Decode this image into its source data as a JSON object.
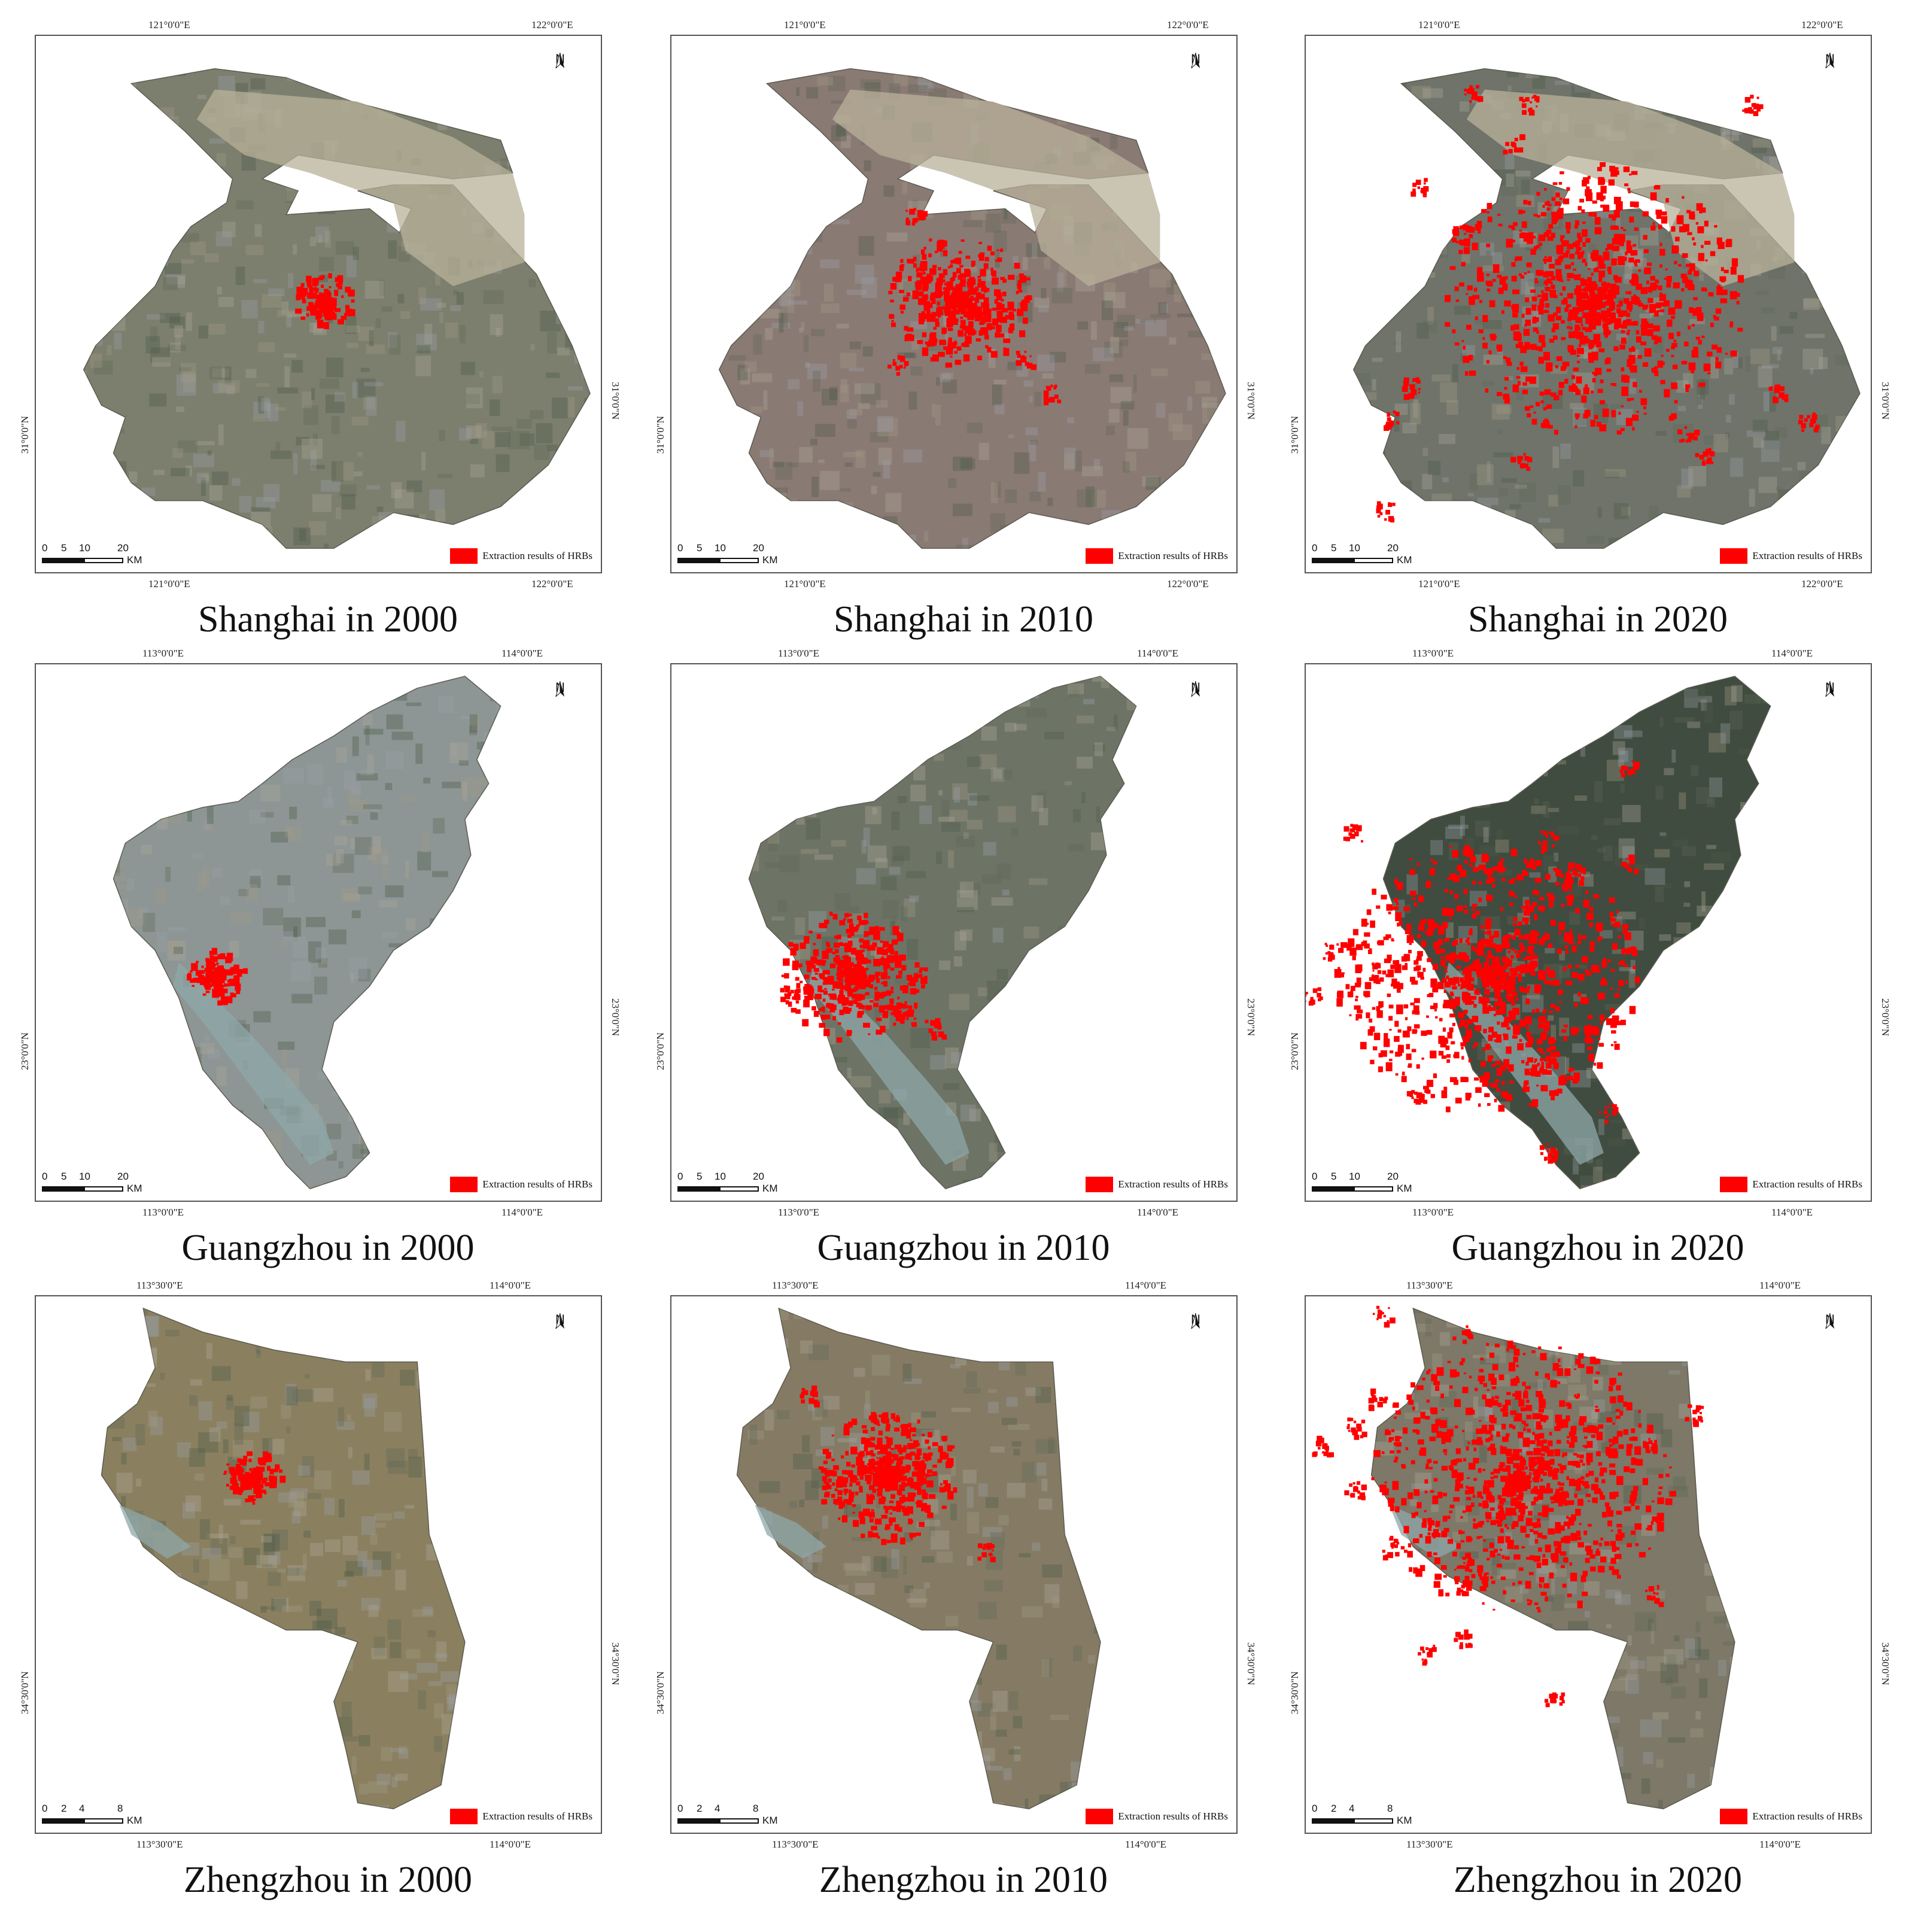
{
  "legend_label": "Extraction results of HRBs",
  "north_label": "N",
  "colors": {
    "hrb": "#ff0000"
  },
  "panels": [
    {
      "caption": "Shanghai in 2000",
      "lon": [
        "121°0'0\"E",
        "122°0'0\"E"
      ],
      "lat": "31°0'0\"N",
      "scale": [
        "0",
        "5",
        "10",
        "20"
      ],
      "unit": "KM",
      "shape": "shanghai",
      "level": 0
    },
    {
      "caption": "Shanghai in 2010",
      "lon": [
        "121°0'0\"E",
        "122°0'0\"E"
      ],
      "lat": "31°0'0\"N",
      "scale": [
        "0",
        "5",
        "10",
        "20"
      ],
      "unit": "KM",
      "shape": "shanghai",
      "level": 1
    },
    {
      "caption": "Shanghai in 2020",
      "lon": [
        "121°0'0\"E",
        "122°0'0\"E"
      ],
      "lat": "31°0'0\"N",
      "scale": [
        "0",
        "5",
        "10",
        "20"
      ],
      "unit": "KM",
      "shape": "shanghai",
      "level": 2
    },
    {
      "caption": "Guangzhou in 2000",
      "lon": [
        "113°0'0\"E",
        "114°0'0\"E"
      ],
      "lat": "23°0'0\"N",
      "scale": [
        "0",
        "5",
        "10",
        "20"
      ],
      "unit": "KM",
      "shape": "guangzhou",
      "level": 0
    },
    {
      "caption": "Guangzhou in 2010",
      "lon": [
        "113°0'0\"E",
        "114°0'0\"E"
      ],
      "lat": "23°0'0\"N",
      "scale": [
        "0",
        "5",
        "10",
        "20"
      ],
      "unit": "KM",
      "shape": "guangzhou",
      "level": 1
    },
    {
      "caption": "Guangzhou in 2020",
      "lon": [
        "113°0'0\"E",
        "114°0'0\"E"
      ],
      "lat": "23°0'0\"N",
      "scale": [
        "0",
        "5",
        "10",
        "20"
      ],
      "unit": "KM",
      "shape": "guangzhou",
      "level": 2
    },
    {
      "caption": "Zhengzhou in 2000",
      "lon": [
        "113°30'0\"E",
        "114°0'0\"E"
      ],
      "lat": "34°30'0\"N",
      "scale": [
        "0",
        "2",
        "4",
        "8"
      ],
      "unit": "KM",
      "shape": "zhengzhou",
      "level": 0
    },
    {
      "caption": "Zhengzhou in 2010",
      "lon": [
        "113°30'0\"E",
        "114°0'0\"E"
      ],
      "lat": "34°30'0\"N",
      "scale": [
        "0",
        "2",
        "4",
        "8"
      ],
      "unit": "KM",
      "shape": "zhengzhou",
      "level": 1
    },
    {
      "caption": "Zhengzhou in 2020",
      "lon": [
        "113°30'0\"E",
        "114°0'0\"E"
      ],
      "lat": "34°30'0\"N",
      "scale": [
        "0",
        "2",
        "4",
        "8"
      ],
      "unit": "KM",
      "shape": "zhengzhou",
      "level": 2
    }
  ]
}
